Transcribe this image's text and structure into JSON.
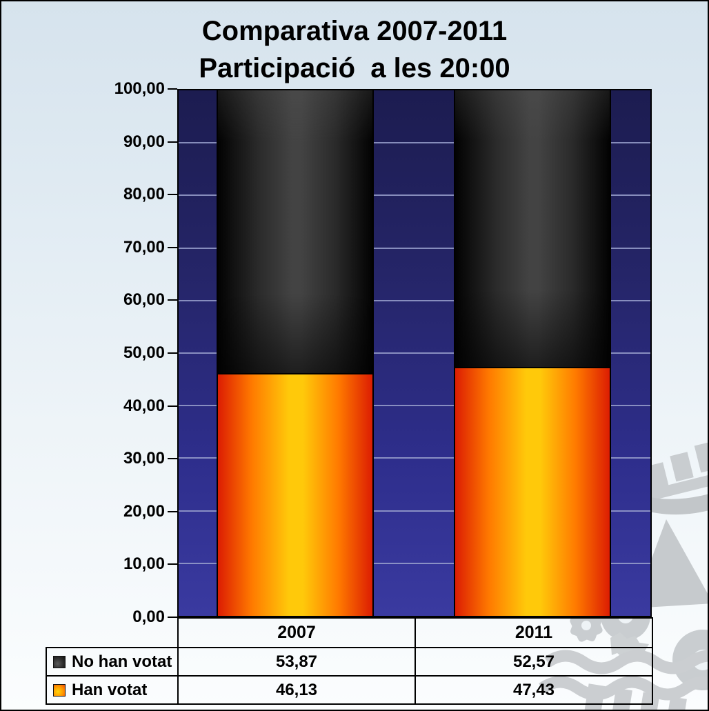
{
  "title": {
    "line1": "Comparativa 2007-2011",
    "line2": "Participació  a les 20:00"
  },
  "chart_data": {
    "type": "bar",
    "stacked": true,
    "title": "Comparativa 2007-2011 Participació a les 20:00",
    "categories": [
      "2007",
      "2011"
    ],
    "series": [
      {
        "name": "No han votat",
        "values": [
          53.87,
          52.57
        ],
        "color": "dark-gray-cylinder"
      },
      {
        "name": "Han votat",
        "values": [
          46.13,
          47.43
        ],
        "color": "orange-yellow-cylinder"
      }
    ],
    "ylim": [
      0,
      100
    ],
    "ytick_step": 10,
    "ytick_labels": [
      "100,00",
      "90,00",
      "80,00",
      "70,00",
      "60,00",
      "50,00",
      "40,00",
      "30,00",
      "20,00",
      "10,00",
      "0,00"
    ],
    "grid": true,
    "plot_background": "navy-blue-gradient",
    "legend_position": "bottom-table-left"
  },
  "table": {
    "headers": [
      "2007",
      "2011"
    ],
    "rows": [
      {
        "label": "No han votat",
        "values": [
          "53,87",
          "52,57"
        ]
      },
      {
        "label": "Han votat",
        "values": [
          "46,13",
          "47,43"
        ]
      }
    ]
  },
  "colors": {
    "plot_bg_top": "#1c1c50",
    "plot_bg_bottom": "#3a3aa0",
    "gridline": "#99a0cc",
    "bar_dark_center": "#434343",
    "bar_dark_edge": "#020202",
    "bar_orange_center": "#ffc90a",
    "bar_orange_edge": "#dc1d02",
    "watermark_gray": "#c9cdd0",
    "page_bg_top": "#d6e3ed",
    "page_bg_bottom": "#fbfdfe"
  }
}
